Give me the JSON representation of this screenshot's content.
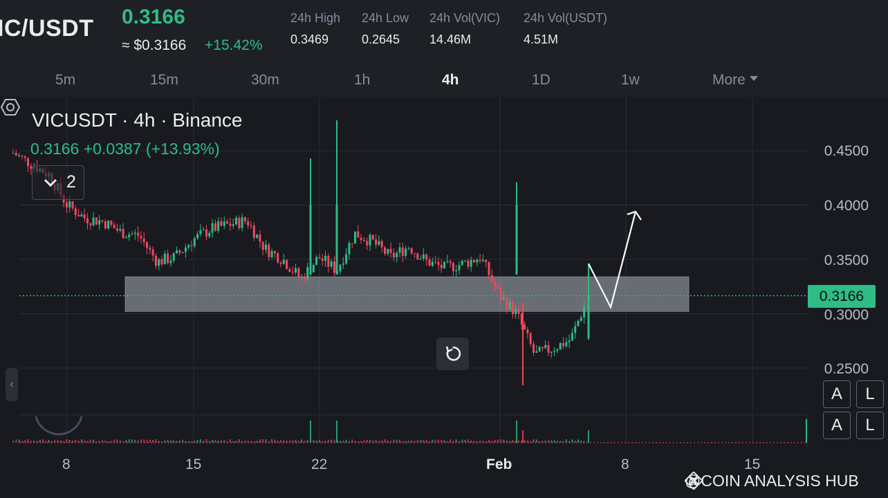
{
  "header": {
    "pair": "IC/USDT",
    "price": "0.3166",
    "price_usd": "≈ $0.3166",
    "change_pct": "+15.42%",
    "stats": [
      {
        "label": "24h High",
        "value": "0.3469"
      },
      {
        "label": "24h Low",
        "value": "0.2645"
      },
      {
        "label": "24h Vol(VIC)",
        "value": "14.46M"
      },
      {
        "label": "24h Vol(USDT)",
        "value": "4.51M"
      }
    ]
  },
  "intervals": [
    "5m",
    "15m",
    "30m",
    "1h",
    "4h",
    "1D",
    "1w",
    "More"
  ],
  "active_interval": "4h",
  "chart": {
    "title": "VICUSDT · 4h · Binance",
    "ohlc_line": "0.3166  +0.0387 (+13.93%)",
    "indicator_count": "2",
    "y_labels": [
      "0.4500",
      "0.4000",
      "0.3500",
      "0.3000",
      "0.2500"
    ],
    "current_price_tag": "0.3166",
    "x_labels": [
      "8",
      "15",
      "22",
      "Feb",
      "8",
      "15"
    ],
    "btn_a": "A",
    "btn_l": "L",
    "side_tab": "‹",
    "watermark": "@COIN ANALYSIS HUB",
    "colors": {
      "up": "#2ebd85",
      "down": "#f6465d",
      "zone": "#9ea3ab",
      "background": "#181a20"
    }
  },
  "chart_data": {
    "type": "candlestick",
    "symbol": "VICUSDT",
    "interval": "4h",
    "ylim": [
      0.23,
      0.48
    ],
    "last_price": 0.3166,
    "support_zone": [
      0.302,
      0.334
    ],
    "close_path": [
      {
        "x": "Jan 5",
        "y": 0.448
      },
      {
        "x": "Jan 7",
        "y": 0.428
      },
      {
        "x": "Jan 8",
        "y": 0.4
      },
      {
        "x": "Jan 9",
        "y": 0.388
      },
      {
        "x": "Jan 10",
        "y": 0.385
      },
      {
        "x": "Jan 11",
        "y": 0.375
      },
      {
        "x": "Jan 12",
        "y": 0.372
      },
      {
        "x": "Jan 13",
        "y": 0.348
      },
      {
        "x": "Jan 14",
        "y": 0.352
      },
      {
        "x": "Jan 15",
        "y": 0.368
      },
      {
        "x": "Jan 16",
        "y": 0.378
      },
      {
        "x": "Jan 17",
        "y": 0.382
      },
      {
        "x": "Jan 18",
        "y": 0.386
      },
      {
        "x": "Jan 19",
        "y": 0.36
      },
      {
        "x": "Jan 20",
        "y": 0.35
      },
      {
        "x": "Jan 21",
        "y": 0.332
      },
      {
        "x": "Jan 22",
        "y": 0.352
      },
      {
        "x": "Jan 23",
        "y": 0.34
      },
      {
        "x": "Jan 24",
        "y": 0.374
      },
      {
        "x": "Jan 25",
        "y": 0.366
      },
      {
        "x": "Jan 26",
        "y": 0.352
      },
      {
        "x": "Jan 27",
        "y": 0.362
      },
      {
        "x": "Jan 28",
        "y": 0.348
      },
      {
        "x": "Jan 29",
        "y": 0.342
      },
      {
        "x": "Jan 30",
        "y": 0.346
      },
      {
        "x": "Jan 31",
        "y": 0.352
      },
      {
        "x": "Feb 1",
        "y": 0.318
      },
      {
        "x": "Feb 2",
        "y": 0.3
      },
      {
        "x": "Feb 3",
        "y": 0.262
      },
      {
        "x": "Feb 4",
        "y": 0.268
      },
      {
        "x": "Feb 5",
        "y": 0.276
      },
      {
        "x": "Feb 6",
        "y": 0.3166
      }
    ],
    "spikes": [
      {
        "x": "Jan 22",
        "high": 0.443
      },
      {
        "x": "Jan 23",
        "high": 0.478
      },
      {
        "x": "Feb 2",
        "high": 0.421
      },
      {
        "x": "Feb 2",
        "low": 0.234
      }
    ],
    "projection": [
      {
        "x": "Feb 6",
        "y": 0.346
      },
      {
        "x": "Feb 7",
        "y": 0.306
      },
      {
        "x": "Feb 8",
        "y": 0.394
      }
    ]
  }
}
